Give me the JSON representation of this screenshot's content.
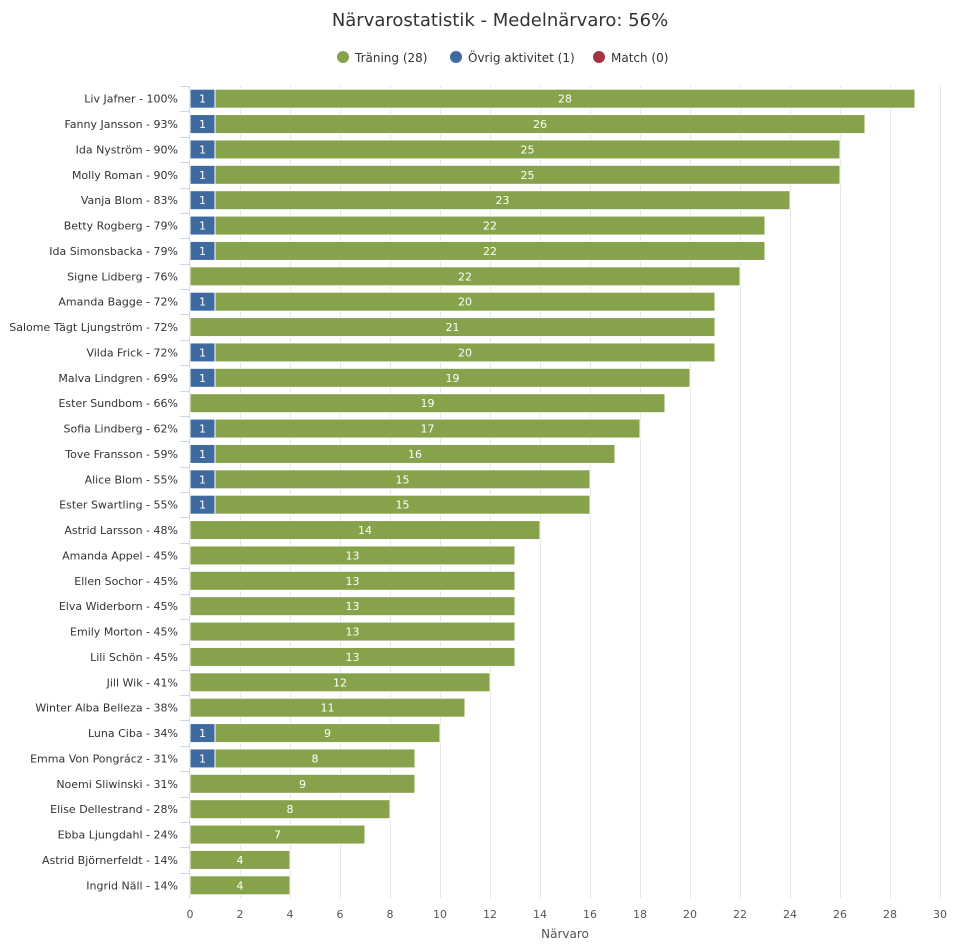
{
  "colors": {
    "training": "#86a24a",
    "other": "#3f6aa0",
    "match": "#a83340",
    "grid": "#e6e6e6",
    "axis": "#ccd6eb",
    "text": "#333333",
    "muted": "#555555"
  },
  "chart_data": {
    "type": "bar",
    "orientation": "horizontal",
    "stacked": true,
    "title": "Närvarostatistik - Medelnärvaro: 56%",
    "xlabel": "Närvaro",
    "ylabel": "",
    "xlim": [
      0,
      30
    ],
    "x_ticks": [
      "0",
      "2",
      "4",
      "6",
      "8",
      "10",
      "12",
      "14",
      "16",
      "18",
      "20",
      "22",
      "24",
      "26",
      "28",
      "30"
    ],
    "grid": true,
    "legend_position": "top-center",
    "legend": [
      "Träning (28)",
      "Övrig aktivitet (1)",
      "Match (0)"
    ],
    "categories": [
      "Liv Jafner - 100%",
      "Fanny Jansson - 93%",
      "Ida Nyström - 90%",
      "Molly Roman - 90%",
      "Vanja Blom - 83%",
      "Betty Rogberg - 79%",
      "Ida Simonsbacka - 79%",
      "Signe Lidberg - 76%",
      "Amanda Bagge - 72%",
      "Salome Tägt Ljungström - 72%",
      "Vilda Frick - 72%",
      "Malva Lindgren - 69%",
      "Ester Sundbom - 66%",
      "Sofia Lindberg - 62%",
      "Tove Fransson - 59%",
      "Alice Blom - 55%",
      "Ester Swartling - 55%",
      "Astrid Larsson - 48%",
      "Amanda Appel - 45%",
      "Ellen Sochor - 45%",
      "Elva Widerborn - 45%",
      "Emily Morton - 45%",
      "Lili Schön - 45%",
      "Jill Wik - 41%",
      "Winter Alba Belleza - 38%",
      "Luna Ciba - 34%",
      "Emma Von Pongrácz - 31%",
      "Noemi Sliwinski - 31%",
      "Elise Dellestrand - 28%",
      "Ebba Ljungdahl - 24%",
      "Astrid Björnerfeldt - 14%",
      "Ingrid Näll - 14%"
    ],
    "series": [
      {
        "name": "Övrig aktivitet (1)",
        "color": "#3f6aa0",
        "values": [
          1,
          1,
          1,
          1,
          1,
          1,
          1,
          0,
          1,
          0,
          1,
          1,
          0,
          1,
          1,
          1,
          1,
          0,
          0,
          0,
          0,
          0,
          0,
          0,
          0,
          1,
          1,
          0,
          0,
          0,
          0,
          0
        ]
      },
      {
        "name": "Träning (28)",
        "color": "#86a24a",
        "values": [
          28,
          26,
          25,
          25,
          23,
          22,
          22,
          22,
          20,
          21,
          20,
          19,
          19,
          17,
          16,
          15,
          15,
          14,
          13,
          13,
          13,
          13,
          13,
          12,
          11,
          9,
          8,
          9,
          8,
          7,
          4,
          4
        ]
      },
      {
        "name": "Match (0)",
        "color": "#a83340",
        "values": [
          0,
          0,
          0,
          0,
          0,
          0,
          0,
          0,
          0,
          0,
          0,
          0,
          0,
          0,
          0,
          0,
          0,
          0,
          0,
          0,
          0,
          0,
          0,
          0,
          0,
          0,
          0,
          0,
          0,
          0,
          0,
          0
        ]
      }
    ]
  }
}
